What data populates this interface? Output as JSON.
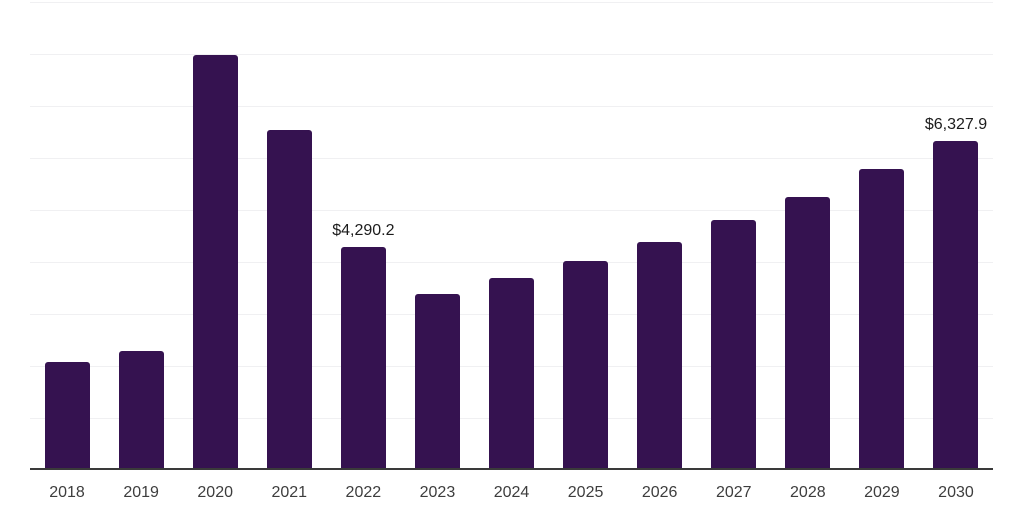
{
  "chart_style": {
    "background_color": "#ffffff",
    "bar_color": "#351250",
    "grid_color": "#f0f0f2",
    "axis_line_color": "#3a3a3a",
    "tick_label_color": "#3d3d3d",
    "data_label_color": "#1c1c1c"
  },
  "chart_data": {
    "type": "bar",
    "title": "",
    "xlabel": "",
    "ylabel": "",
    "categories": [
      "2018",
      "2019",
      "2020",
      "2021",
      "2022",
      "2023",
      "2024",
      "2025",
      "2026",
      "2027",
      "2028",
      "2029",
      "2030"
    ],
    "values": [
      2080,
      2280,
      7980,
      6540,
      4290.2,
      3385,
      3690,
      4020,
      4385,
      4810,
      5250,
      5790,
      6327.9
    ],
    "data_labels": {
      "2022": "$4,290.2",
      "2030": "$6,327.9"
    },
    "ylim": [
      0,
      9000
    ],
    "gridline_interval": 1000,
    "grid": "horizontal-only",
    "y_axis_tick_labels": "hidden",
    "legend_position": "none",
    "bar_corner_radius_px": 3
  }
}
